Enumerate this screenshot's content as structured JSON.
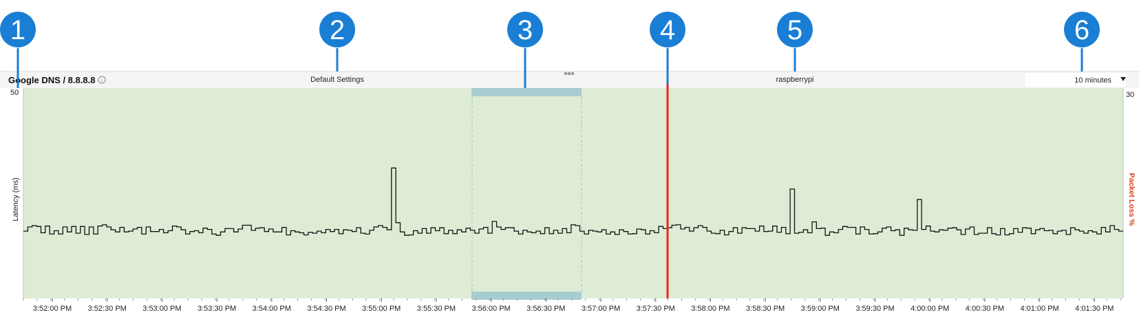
{
  "callouts": [
    {
      "number": "1"
    },
    {
      "number": "2"
    },
    {
      "number": "3"
    },
    {
      "number": "4"
    },
    {
      "number": "5"
    },
    {
      "number": "6"
    }
  ],
  "header": {
    "target_title": "Google DNS / 8.8.8.8",
    "info_icon": "info-icon",
    "settings_label": "Default Settings",
    "more_icon": "more-dots-icon",
    "host_label": "raspberrypi",
    "time_range": {
      "selected": "10 minutes",
      "icon": "dropdown-arrow-icon"
    }
  },
  "colors": {
    "callout": "#1a7fd4",
    "plot_bg": "#dfecd5",
    "selection_band": "#a8cdd1",
    "cursor_line": "#e8231c",
    "packet_loss_axis": "#e0401c",
    "latency_line": "#111111"
  },
  "chart_data": {
    "type": "line",
    "left_axis": {
      "label": "Latency (ms)",
      "max_label": "50",
      "ylim": [
        0,
        50
      ]
    },
    "right_axis": {
      "label": "Packet Loss %",
      "max_label": "30",
      "ylim": [
        0,
        30
      ]
    },
    "x_tick_labels": [
      "3:52:00 PM",
      "3:52:30 PM",
      "3:53:00 PM",
      "3:53:30 PM",
      "3:54:00 PM",
      "3:54:30 PM",
      "3:55:00 PM",
      "3:55:30 PM",
      "3:56:00 PM",
      "3:56:30 PM",
      "3:57:00 PM",
      "3:57:30 PM",
      "3:58:00 PM",
      "3:58:30 PM",
      "3:59:00 PM",
      "3:59:30 PM",
      "4:00:00 PM",
      "4:00:30 PM",
      "4:01:00 PM",
      "4:01:30 PM"
    ],
    "selection": {
      "start": "3:55:37 PM",
      "end": "3:56:37 PM"
    },
    "cursor": "3:57:43 PM",
    "series": [
      {
        "values": [
          16.0,
          17.0,
          17.3,
          17.1,
          15.6,
          17.2,
          15.3,
          16.1,
          15.3,
          17.0,
          15.8,
          17.1,
          15.5,
          17.1,
          15.2,
          17.0,
          15.3,
          17.2,
          17.5,
          17.0,
          16.3,
          15.8,
          16.9,
          15.8,
          16.0,
          16.5,
          16.9,
          15.3,
          17.0,
          15.9,
          15.9,
          16.4,
          15.6,
          16.1,
          17.2,
          17.0,
          16.3,
          15.3,
          15.9,
          16.1,
          15.6,
          16.7,
          16.4,
          15.3,
          15.0,
          15.8,
          16.6,
          16.6,
          15.8,
          16.5,
          17.4,
          17.4,
          16.2,
          16.7,
          16.8,
          15.9,
          16.5,
          15.8,
          15.8,
          16.9,
          15.1,
          16.1,
          15.8,
          15.6,
          15.1,
          15.7,
          15.5,
          16.0,
          15.6,
          16.4,
          15.9,
          16.4,
          15.4,
          16.3,
          16.2,
          15.9,
          16.8,
          15.5,
          15.3,
          16.2,
          17.0,
          17.3,
          16.9,
          16.3,
          31.0,
          18.0,
          15.8,
          15.0,
          15.1,
          16.1,
          15.5,
          16.6,
          15.5,
          16.8,
          16.1,
          16.8,
          15.4,
          16.2,
          15.4,
          16.3,
          15.8,
          16.7,
          16.2,
          15.5,
          16.5,
          16.9,
          15.5,
          18.3,
          17.0,
          16.4,
          16.8,
          16.8,
          16.0,
          15.3,
          16.2,
          15.8,
          15.6,
          16.0,
          15.4,
          16.8,
          15.4,
          16.2,
          15.5,
          16.6,
          15.6,
          17.5,
          17.3,
          16.0,
          15.3,
          16.2,
          16.0,
          15.8,
          16.3,
          15.3,
          15.8,
          15.2,
          16.3,
          15.9,
          15.3,
          15.4,
          16.5,
          16.3,
          15.3,
          16.1,
          15.6,
          17.1,
          16.6,
          16.8,
          17.4,
          17.5,
          16.5,
          16.9,
          16.0,
          16.8,
          17.3,
          16.9,
          16.0,
          15.5,
          15.4,
          16.2,
          15.1,
          15.9,
          16.8,
          15.5,
          16.8,
          16.6,
          16.6,
          16.0,
          17.2,
          15.9,
          16.0,
          17.2,
          15.7,
          16.9,
          15.4,
          26.0,
          15.5,
          15.7,
          16.3,
          15.6,
          18.2,
          16.6,
          16.7,
          15.0,
          15.8,
          15.6,
          16.4,
          17.1,
          16.9,
          16.9,
          15.3,
          17.0,
          16.4,
          15.3,
          15.4,
          15.8,
          16.7,
          17.0,
          16.1,
          16.3,
          15.0,
          16.7,
          16.3,
          16.2,
          23.5,
          16.4,
          17.2,
          16.0,
          15.8,
          16.3,
          16.2,
          16.7,
          16.8,
          16.3,
          15.2,
          16.5,
          17.0,
          15.2,
          15.5,
          15.5,
          16.8,
          15.4,
          15.1,
          16.6,
          15.1,
          15.4,
          16.6,
          15.7,
          16.8,
          16.7,
          15.4,
          16.3,
          16.6,
          16.1,
          16.2,
          15.4,
          16.0,
          16.2,
          15.2,
          16.8,
          16.3,
          16.0,
          15.5,
          16.1,
          15.8,
          15.3,
          16.9,
          15.8,
          17.3,
          16.4,
          16.0
        ]
      }
    ]
  }
}
